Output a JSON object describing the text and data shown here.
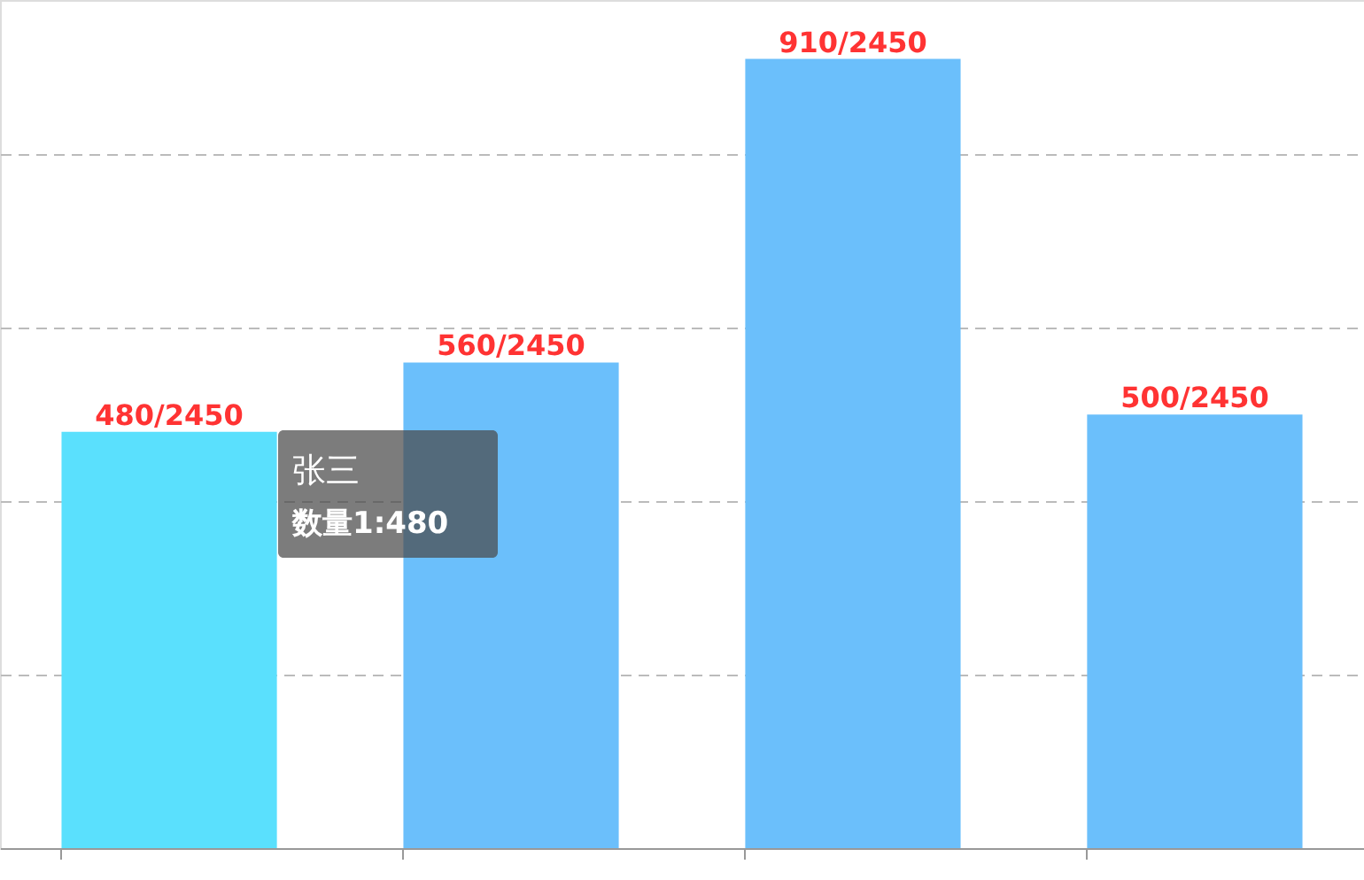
{
  "chart_data": {
    "type": "bar",
    "categories": [
      null,
      null,
      null,
      null
    ],
    "values": [
      480,
      560,
      910,
      500
    ],
    "colors": [
      "#5ae0fd",
      "#6bbffb",
      "#6bbffb",
      "#6bbffb"
    ],
    "value_labels": [
      "480/2450",
      "560/2450",
      "910/2450",
      "500/2450"
    ],
    "ylim": [
      0,
      978
    ],
    "yticks": [
      {
        "value": 200,
        "label": null
      },
      {
        "value": 400,
        "label": null
      },
      {
        "value": 600,
        "label": null
      },
      {
        "value": 800,
        "label": null
      }
    ],
    "grid": "y",
    "tick_labels": false,
    "annotations": [
      "张三",
      "数量1:480"
    ]
  }
}
